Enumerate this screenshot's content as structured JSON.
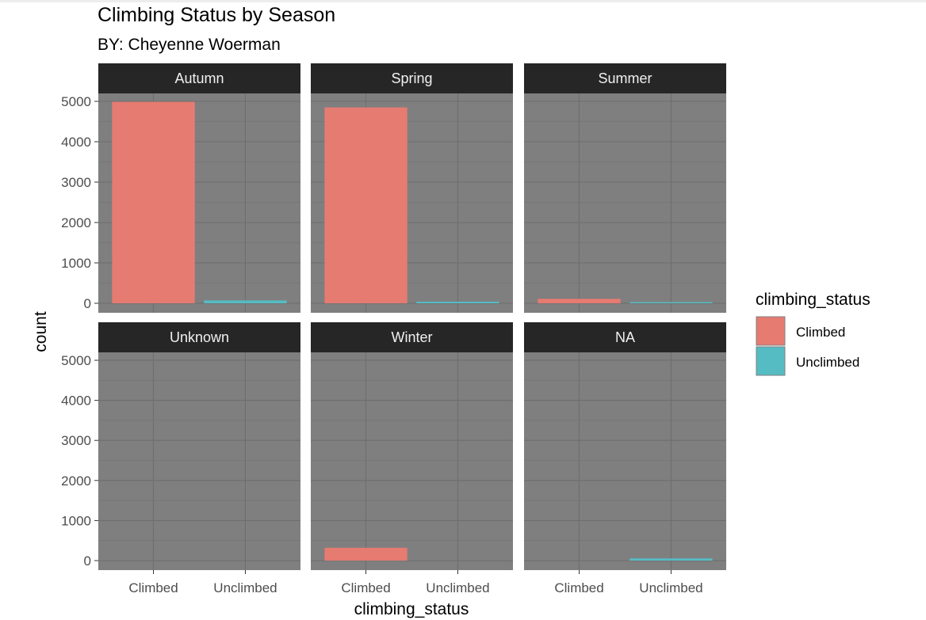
{
  "title": "Climbing Status by Season",
  "subtitle": "BY: Cheyenne Woerman",
  "colors": {
    "panel_bg": "#7f7f7f",
    "grid_major": "#6e6e6e",
    "grid_minor": "#757575",
    "strip_bg": "#262626",
    "climbed": "#e67b72",
    "unclimbed": "#55bcc3"
  },
  "chart_data": {
    "type": "bar",
    "facet_by": "season",
    "categories": [
      "Climbed",
      "Unclimbed"
    ],
    "xlabel": "climbing_status",
    "ylabel": "count",
    "ylim": [
      0,
      5200
    ],
    "yticks": [
      0,
      1000,
      2000,
      3000,
      4000,
      5000
    ],
    "grid": true,
    "legend": {
      "title": "climbing_status",
      "placement": "right",
      "items": [
        {
          "label": "Climbed",
          "color": "#e67b72"
        },
        {
          "label": "Unclimbed",
          "color": "#55bcc3"
        }
      ]
    },
    "panels": [
      {
        "label": "Autumn",
        "values": [
          4990,
          70
        ]
      },
      {
        "label": "Spring",
        "values": [
          4850,
          40
        ]
      },
      {
        "label": "Summer",
        "values": [
          110,
          15
        ]
      },
      {
        "label": "Unknown",
        "values": [
          0,
          0
        ]
      },
      {
        "label": "Winter",
        "values": [
          320,
          0
        ]
      },
      {
        "label": "NA",
        "values": [
          0,
          55
        ]
      }
    ]
  }
}
